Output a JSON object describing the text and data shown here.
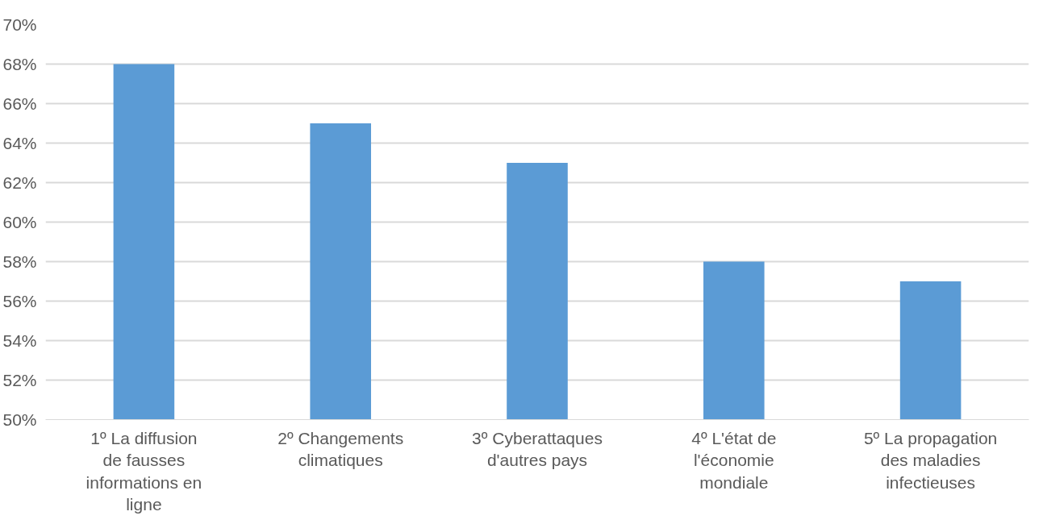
{
  "chart_data": {
    "type": "bar",
    "categories": [
      "1º La diffusion de fausses informations en ligne",
      "2º Changements climatiques",
      "3º Cyberattaques d'autres pays",
      "4º L'état de l'économie mondiale",
      "5º La propagation des maladies infectieuses"
    ],
    "values": [
      68,
      65,
      63,
      58,
      57
    ],
    "color": "#5b9bd5",
    "ylim": [
      50,
      70
    ],
    "yticks": [
      {
        "value": 50,
        "label": "50%"
      },
      {
        "value": 52,
        "label": "52%"
      },
      {
        "value": 54,
        "label": "54%"
      },
      {
        "value": 56,
        "label": "56%"
      },
      {
        "value": 58,
        "label": "58%"
      },
      {
        "value": 60,
        "label": "60%"
      },
      {
        "value": 62,
        "label": "62%"
      },
      {
        "value": 64,
        "label": "64%"
      },
      {
        "value": 66,
        "label": "66%"
      },
      {
        "value": 68,
        "label": "68%"
      },
      {
        "value": 70,
        "label": "70%"
      }
    ],
    "grid": "y"
  }
}
